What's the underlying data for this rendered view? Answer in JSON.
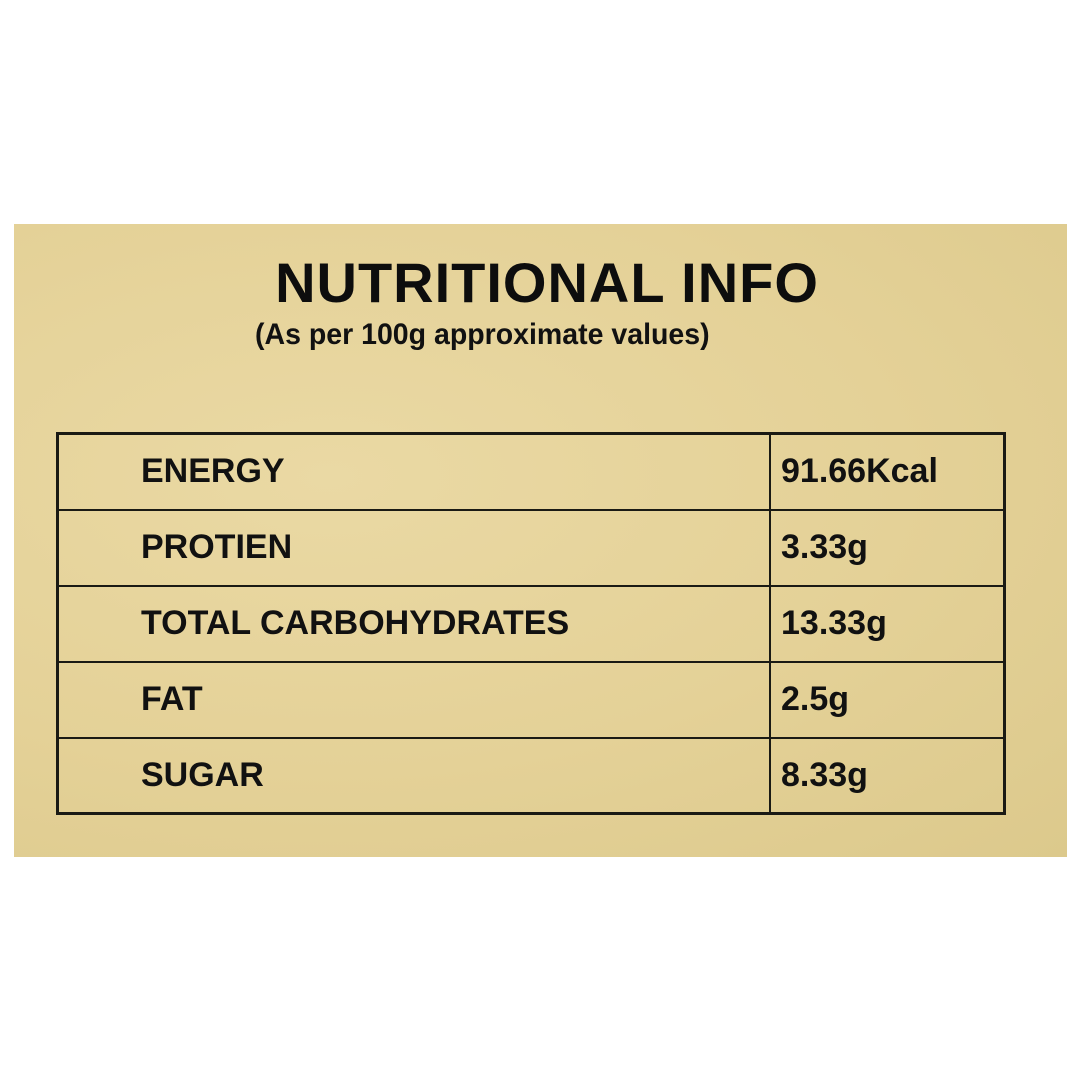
{
  "title": "NUTRITIONAL INFO",
  "subtitle": "(As per 100g approximate values)",
  "colors": {
    "panel": "#e4d197",
    "text": "#111111",
    "border": "#1a1a14"
  },
  "rows": [
    {
      "label": "ENERGY",
      "value": "91.66Kcal"
    },
    {
      "label": "PROTIEN",
      "value": "3.33g"
    },
    {
      "label": "TOTAL CARBOHYDRATES",
      "value": "13.33g"
    },
    {
      "label": "FAT",
      "value": "2.5g"
    },
    {
      "label": "SUGAR",
      "value": "8.33g"
    }
  ]
}
